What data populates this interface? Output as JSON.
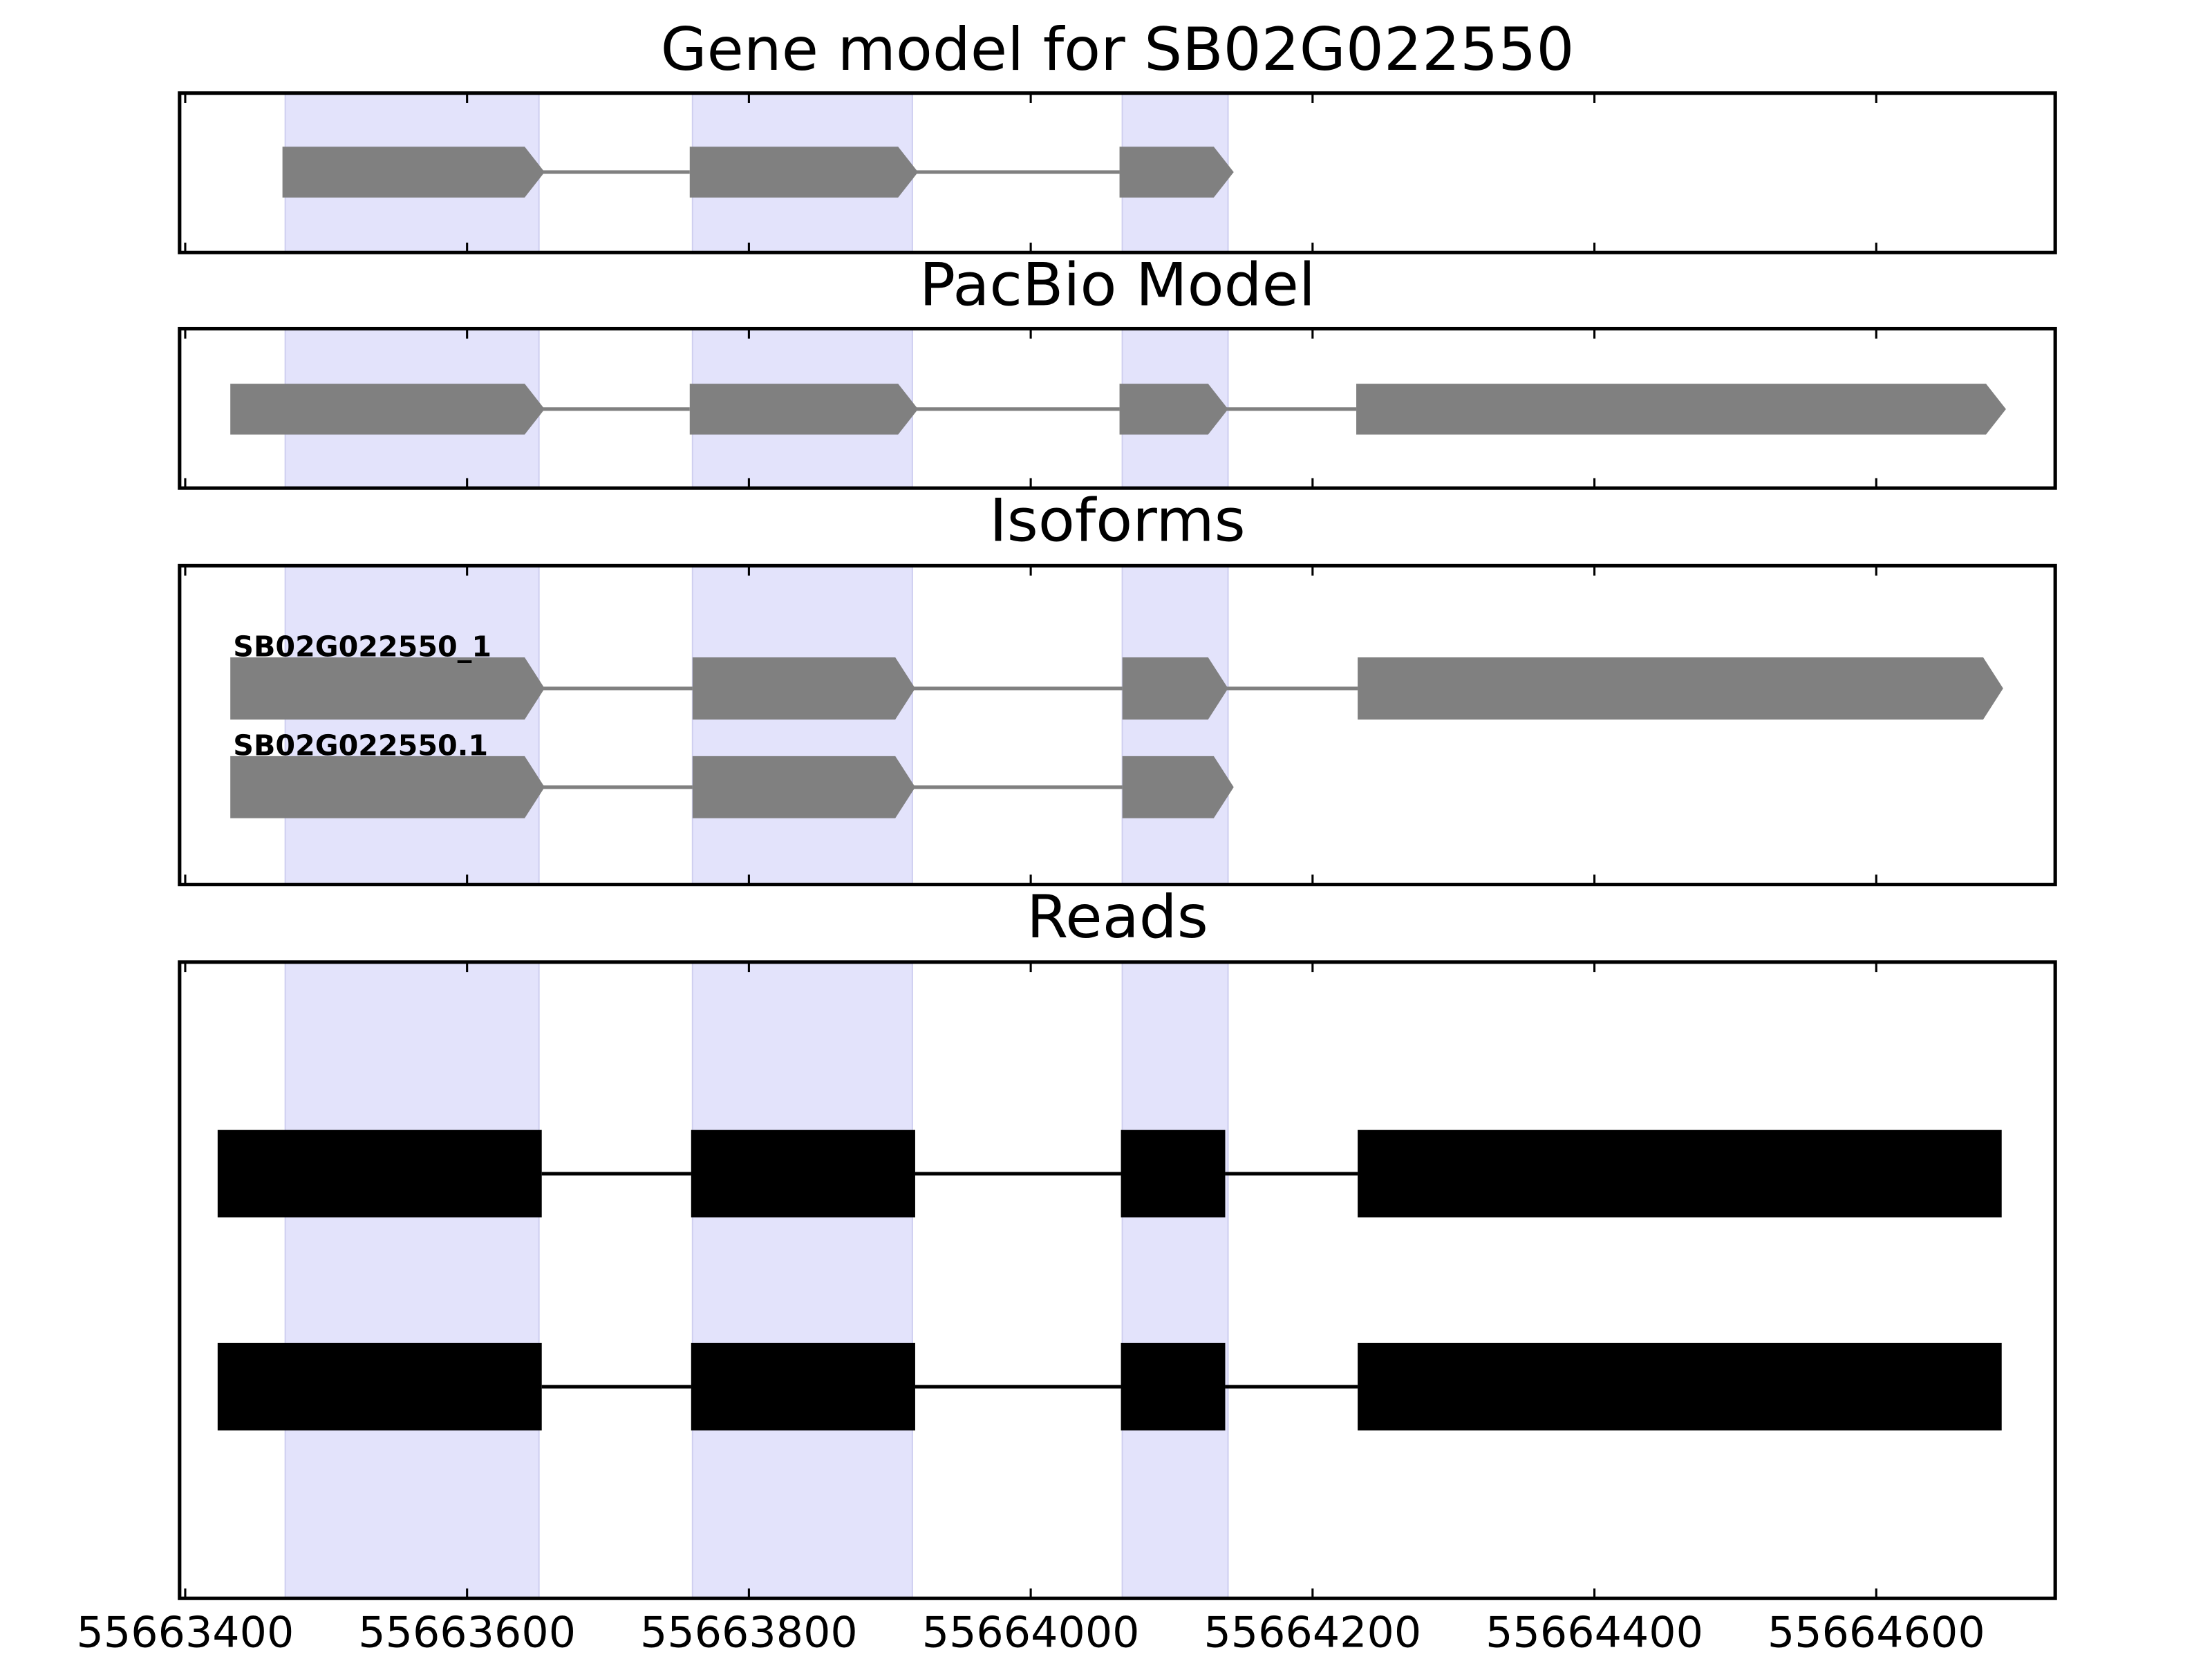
{
  "chart_data": [
    {
      "type": "gene_track",
      "title": "Gene model for SB02G022550",
      "xlim": [
        55663396,
        55664727
      ],
      "xticks": [
        55663400,
        55663600,
        55663800,
        55664000,
        55664200,
        55664400,
        55664600
      ],
      "highlights": [
        [
          55663471,
          55663651
        ],
        [
          55663760,
          55663916
        ],
        [
          55664065,
          55664140
        ]
      ],
      "highlight_color": "#e3e3fb",
      "color": "#808080",
      "arrows": true,
      "tracks": [
        {
          "exons": [
            [
              55663469,
              55663651
            ],
            [
              55663758,
              55663916
            ],
            [
              55664063,
              55664140
            ]
          ]
        }
      ]
    },
    {
      "type": "gene_track",
      "title": "PacBio Model",
      "xlim": [
        55663396,
        55664727
      ],
      "xticks": [
        55663400,
        55663600,
        55663800,
        55664000,
        55664200,
        55664400,
        55664600
      ],
      "highlights": [
        [
          55663471,
          55663651
        ],
        [
          55663760,
          55663916
        ],
        [
          55664065,
          55664140
        ]
      ],
      "highlight_color": "#e3e3fb",
      "color": "#808080",
      "arrows": true,
      "tracks": [
        {
          "exons": [
            [
              55663432,
              55663651
            ],
            [
              55663758,
              55663916
            ],
            [
              55664063,
              55664136
            ],
            [
              55664231,
              55664688
            ]
          ]
        }
      ]
    },
    {
      "type": "gene_track",
      "title": "Isoforms",
      "xlim": [
        55663396,
        55664727
      ],
      "xticks": [
        55663400,
        55663600,
        55663800,
        55664000,
        55664200,
        55664400,
        55664600
      ],
      "highlights": [
        [
          55663471,
          55663651
        ],
        [
          55663760,
          55663916
        ],
        [
          55664065,
          55664140
        ]
      ],
      "highlight_color": "#e3e3fb",
      "color": "#808080",
      "arrows": true,
      "tracks": [
        {
          "name": "SB02G022550_1",
          "exons": [
            [
              55663432,
              55663651
            ],
            [
              55663760,
              55663914
            ],
            [
              55664065,
              55664136
            ],
            [
              55664232,
              55664686
            ]
          ]
        },
        {
          "name": "SB02G022550.1",
          "exons": [
            [
              55663432,
              55663651
            ],
            [
              55663760,
              55663914
            ],
            [
              55664065,
              55664140
            ]
          ]
        }
      ]
    },
    {
      "type": "read_track",
      "title": "Reads",
      "xlim": [
        55663396,
        55664727
      ],
      "xticks": [
        55663400,
        55663600,
        55663800,
        55664000,
        55664200,
        55664400,
        55664600
      ],
      "highlights": [
        [
          55663471,
          55663651
        ],
        [
          55663760,
          55663916
        ],
        [
          55664065,
          55664140
        ]
      ],
      "highlight_color": "#e3e3fb",
      "color": "#000000",
      "arrows": false,
      "tracks": [
        {
          "exons": [
            [
              55663423,
              55663653
            ],
            [
              55663759,
              55663918
            ],
            [
              55664064,
              55664138
            ],
            [
              55664232,
              55664689
            ]
          ]
        },
        {
          "exons": [
            [
              55663423,
              55663653
            ],
            [
              55663759,
              55663918
            ],
            [
              55664064,
              55664138
            ],
            [
              55664232,
              55664689
            ]
          ]
        }
      ]
    }
  ]
}
